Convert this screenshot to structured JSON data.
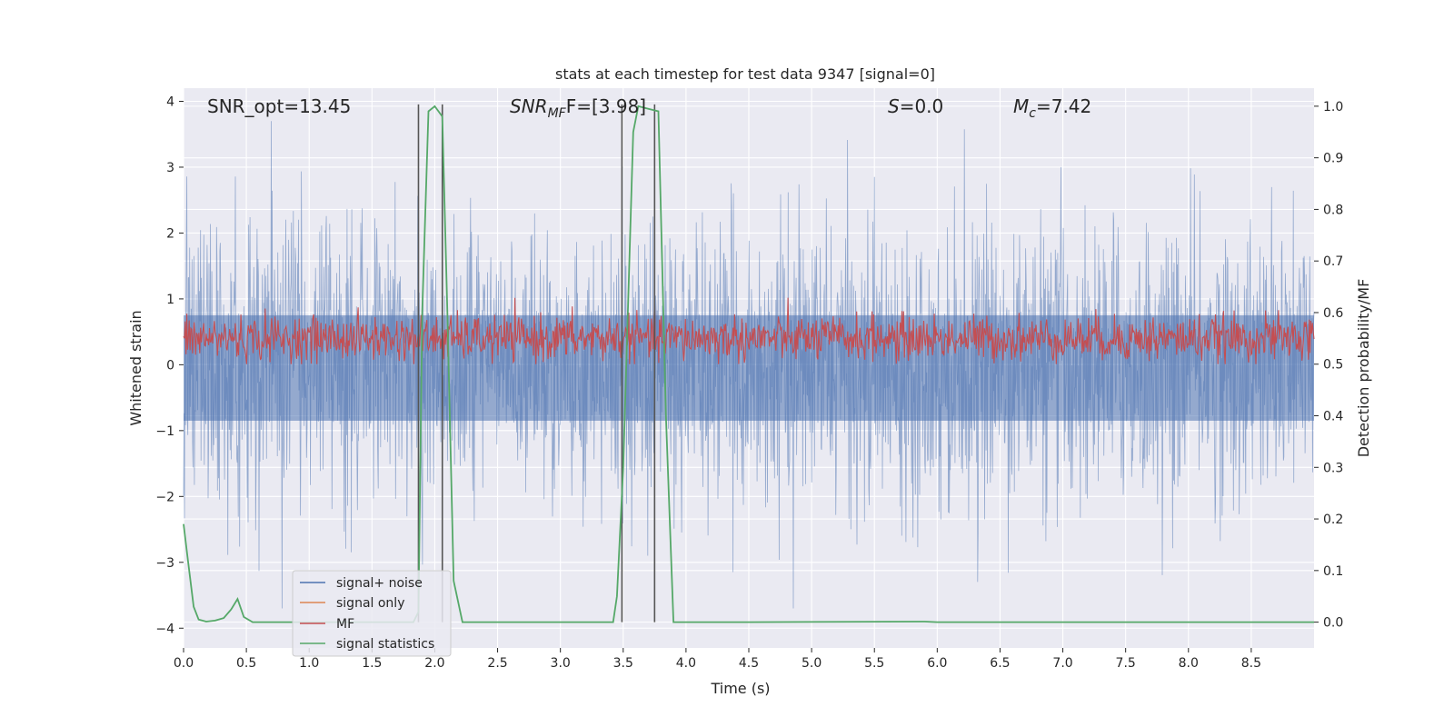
{
  "chart_data": {
    "type": "line",
    "title": "stats at each timestep for test data 9347 [signal=0]",
    "xlabel": "Time (s)",
    "ylabel": "Whitened strain",
    "y2label": "Detection probability/MF",
    "xlim": [
      0.0,
      9.0
    ],
    "ylim": [
      -4.3,
      4.2
    ],
    "y2lim": [
      -0.05,
      1.035
    ],
    "xticks": [
      "0.0",
      "0.5",
      "1.0",
      "1.5",
      "2.0",
      "2.5",
      "3.0",
      "3.5",
      "4.0",
      "4.5",
      "5.0",
      "5.5",
      "6.0",
      "6.5",
      "7.0",
      "7.5",
      "8.0",
      "8.5"
    ],
    "yticks": [
      "4",
      "3",
      "2",
      "1",
      "0",
      "−1",
      "−2",
      "−3",
      "−4"
    ],
    "y2ticks": [
      "1.0",
      "0.9",
      "0.8",
      "0.7",
      "0.6",
      "0.5",
      "0.4",
      "0.3",
      "0.2",
      "0.1",
      "0.0"
    ],
    "annotations": {
      "snr_opt": "SNR_opt=13.45",
      "snr_mf_prefix": "SNR",
      "snr_mf_sub": "MF",
      "snr_mf_suffix": "F=[3.98]",
      "s_prefix": "S",
      "s_suffix": "=0.0",
      "mc_prefix": "M",
      "mc_sub": "c",
      "mc_suffix": "=7.42"
    },
    "legend": {
      "placement": "lower-left",
      "entries": [
        "signal+ noise",
        "signal only",
        "MF",
        "signal statistics"
      ]
    },
    "series": [
      {
        "name": "signal+ noise",
        "axis": "left",
        "color": "#4c72b0",
        "description": "dense whitened strain noise, amplitude roughly ±2.5 with spikes to about 3.6 / -3.7",
        "stats": {
          "typical_max": 2.4,
          "typical_min": -2.3,
          "peak_max": 3.7,
          "peak_min": -3.7
        }
      },
      {
        "name": "signal only",
        "axis": "left",
        "color": "#dd8452",
        "values": []
      },
      {
        "name": "MF",
        "axis": "right",
        "color": "#c44e52",
        "description": "matched-filter band around 0.55 on the right axis, range about 0.50 to 0.63",
        "stats": {
          "center": 0.55,
          "min": 0.5,
          "max": 0.635
        }
      },
      {
        "name": "signal statistics",
        "axis": "right",
        "color": "#55a868",
        "x": [
          0.0,
          0.03,
          0.08,
          0.12,
          0.18,
          0.25,
          0.32,
          0.38,
          0.43,
          0.48,
          0.55,
          0.65,
          1.0,
          1.5,
          1.83,
          1.87,
          1.9,
          1.95,
          2.0,
          2.06,
          2.1,
          2.15,
          2.22,
          2.3,
          3.0,
          3.42,
          3.45,
          3.5,
          3.58,
          3.62,
          3.7,
          3.78,
          3.84,
          3.9,
          4.5,
          5.9,
          6.0,
          7.0,
          8.0,
          9.0
        ],
        "values": [
          0.19,
          0.13,
          0.03,
          0.005,
          0.001,
          0.003,
          0.008,
          0.025,
          0.045,
          0.01,
          0.0,
          0.0,
          0.0,
          0.0,
          0.0,
          0.02,
          0.6,
          0.99,
          1.0,
          0.98,
          0.6,
          0.08,
          0.0,
          0.0,
          0.0,
          0.0,
          0.05,
          0.3,
          0.95,
          1.0,
          0.995,
          0.99,
          0.4,
          0.0,
          0.0,
          0.001,
          0.0,
          0.0,
          0.0,
          0.0
        ]
      }
    ],
    "vertical_lines": [
      {
        "x": 1.87,
        "color": "#555555"
      },
      {
        "x": 2.06,
        "color": "#555555"
      },
      {
        "x": 3.49,
        "color": "#555555"
      },
      {
        "x": 3.75,
        "color": "#555555"
      }
    ],
    "grid": true
  }
}
